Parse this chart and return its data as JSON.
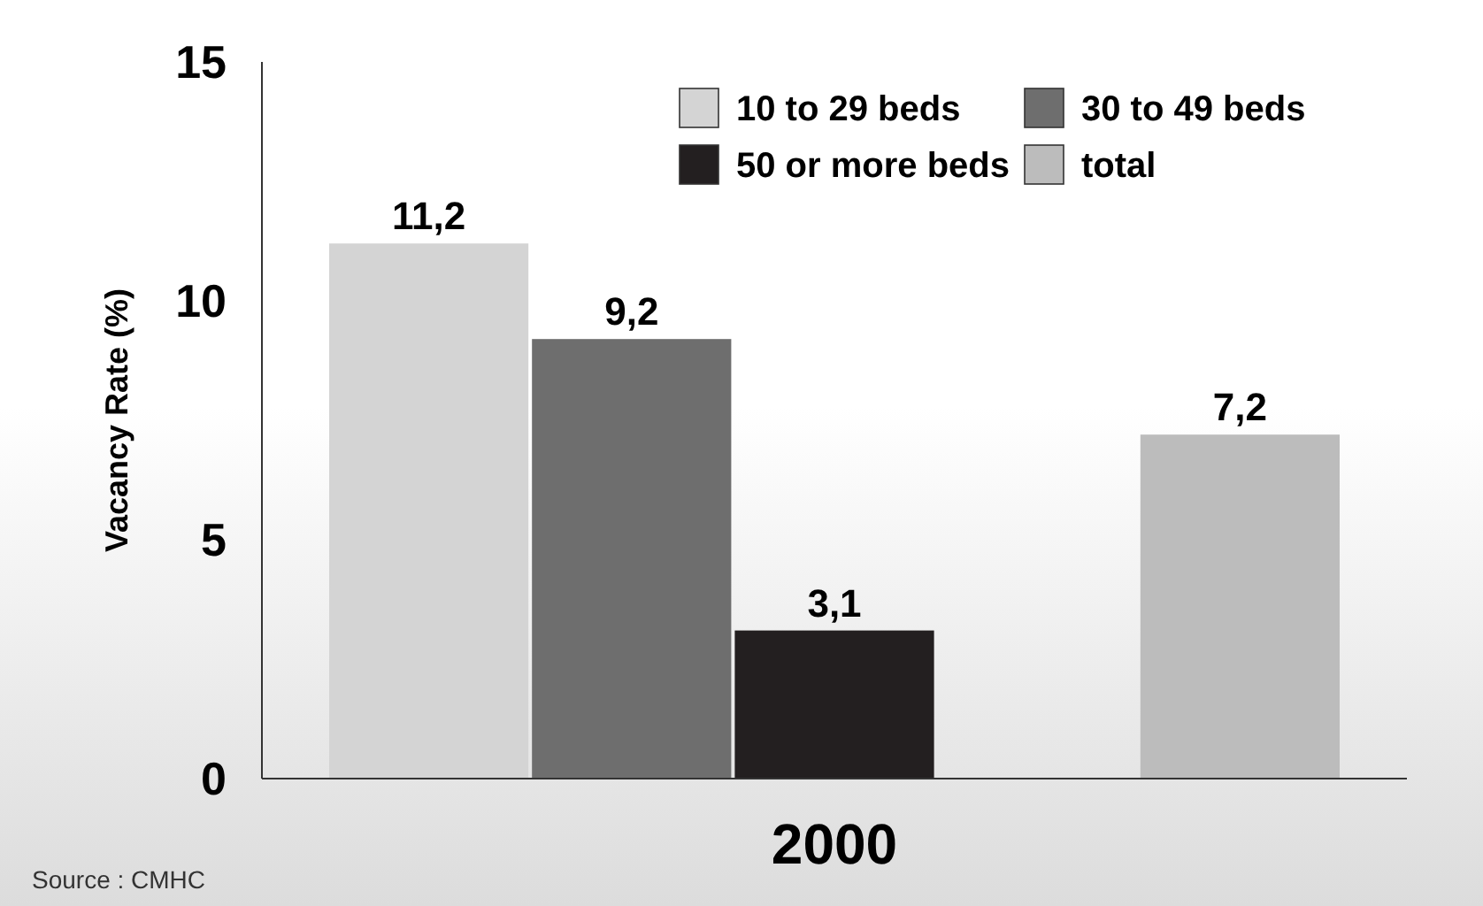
{
  "chart_data": {
    "type": "bar",
    "categories": [
      "2000"
    ],
    "ylabel": "Vacancy Rate (%)",
    "series": [
      {
        "name": "10 to 29 beds",
        "color": "#d4d4d4",
        "values": [
          11.2
        ],
        "value_labels": [
          "11,2"
        ]
      },
      {
        "name": "30 to 49 beds",
        "color": "#6e6e6e",
        "values": [
          9.2
        ],
        "value_labels": [
          "9,2"
        ]
      },
      {
        "name": "50 or more beds",
        "color": "#231f20",
        "values": [
          3.1
        ],
        "value_labels": [
          "3,1"
        ]
      },
      {
        "name": "total",
        "color": "#bcbcbc",
        "values": [
          7.2
        ],
        "value_labels": [
          "7,2"
        ]
      }
    ],
    "ylim": [
      0,
      15
    ],
    "yticks": [
      0,
      5,
      10,
      15
    ],
    "grid": false,
    "legend": "top right",
    "annotations": [
      "Source : CMHC"
    ]
  }
}
